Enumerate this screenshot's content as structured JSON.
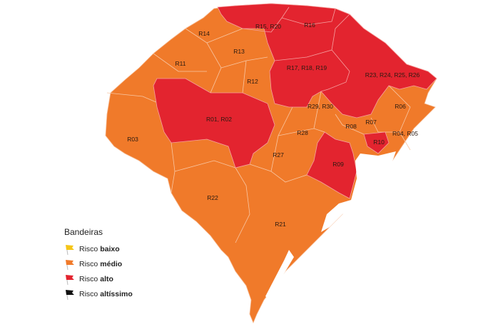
{
  "colors": {
    "medio": "#F07A2A",
    "alto": "#E3242F",
    "baixo": "#F5C518",
    "altissimo": "#111111"
  },
  "regions": [
    {
      "label": "R14",
      "risk": "médio"
    },
    {
      "label": "R15, R20",
      "risk": "alto"
    },
    {
      "label": "R16",
      "risk": "alto"
    },
    {
      "label": "R13",
      "risk": "médio"
    },
    {
      "label": "R11",
      "risk": "médio"
    },
    {
      "label": "R17, R18, R19",
      "risk": "alto"
    },
    {
      "label": "R23, R24, R25, R26",
      "risk": "alto"
    },
    {
      "label": "R12",
      "risk": "médio"
    },
    {
      "label": "R29, R30",
      "risk": "médio"
    },
    {
      "label": "R06",
      "risk": "médio"
    },
    {
      "label": "R01, R02",
      "risk": "alto"
    },
    {
      "label": "R07",
      "risk": "médio"
    },
    {
      "label": "R08",
      "risk": "médio"
    },
    {
      "label": "R04, R05",
      "risk": "médio"
    },
    {
      "label": "R03",
      "risk": "médio"
    },
    {
      "label": "R28",
      "risk": "médio"
    },
    {
      "label": "R10",
      "risk": "alto"
    },
    {
      "label": "R27",
      "risk": "médio"
    },
    {
      "label": "R09",
      "risk": "alto"
    },
    {
      "label": "R22",
      "risk": "médio"
    },
    {
      "label": "R21",
      "risk": "médio"
    }
  ],
  "legend": {
    "title": "Bandeiras",
    "items": [
      {
        "prefix": "Risco",
        "level": "baixo",
        "color": "#F5C518"
      },
      {
        "prefix": "Risco",
        "level": "médio",
        "color": "#F07A2A"
      },
      {
        "prefix": "Risco",
        "level": "alto",
        "color": "#E3242F"
      },
      {
        "prefix": "Risco",
        "level": "altíssimo",
        "color": "#111111"
      }
    ]
  }
}
